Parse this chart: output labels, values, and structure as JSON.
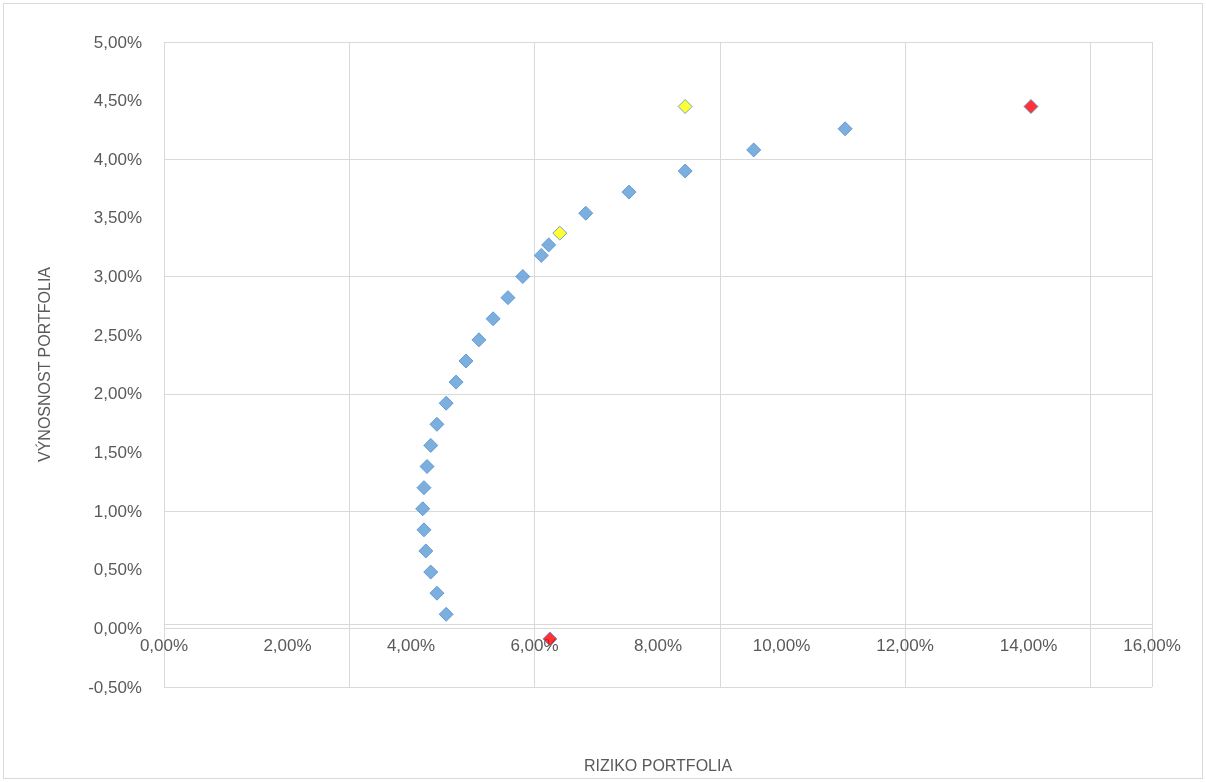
{
  "chart_data": {
    "type": "scatter",
    "xlabel": "RIZIKO PORTFOLIA",
    "ylabel": "VÝNOSNOST PORTFOLIA",
    "marker": "diamond",
    "grid": true,
    "xlim": [
      0,
      16
    ],
    "ylim": [
      -0.5,
      5
    ],
    "xticks": [
      {
        "value": 0,
        "label": "0,00%"
      },
      {
        "value": 2,
        "label": "2,00%"
      },
      {
        "value": 4,
        "label": "4,00%"
      },
      {
        "value": 6,
        "label": "6,00%"
      },
      {
        "value": 8,
        "label": "8,00%"
      },
      {
        "value": 10,
        "label": "10,00%"
      },
      {
        "value": 12,
        "label": "12,00%"
      },
      {
        "value": 14,
        "label": "14,00%"
      },
      {
        "value": 16,
        "label": "16,00%"
      }
    ],
    "yticks": [
      {
        "value": -0.5,
        "label": "-0,50%"
      },
      {
        "value": 0,
        "label": "0,00%"
      },
      {
        "value": 0.5,
        "label": "0,50%"
      },
      {
        "value": 1,
        "label": "1,00%"
      },
      {
        "value": 1.5,
        "label": "1,50%"
      },
      {
        "value": 2,
        "label": "2,00%"
      },
      {
        "value": 2.5,
        "label": "2,50%"
      },
      {
        "value": 3,
        "label": "3,00%"
      },
      {
        "value": 3.5,
        "label": "3,50%"
      },
      {
        "value": 4,
        "label": "4,00%"
      },
      {
        "value": 4.5,
        "label": "4,50%"
      },
      {
        "value": 5,
        "label": "5,00%"
      }
    ],
    "series": [
      {
        "color": "#5b9bd5",
        "x": [
          4.57,
          4.42,
          4.32,
          4.24,
          4.21,
          4.19,
          4.21,
          4.26,
          4.32,
          4.42,
          4.57,
          4.73,
          4.89,
          5.1,
          5.33,
          5.57,
          5.81,
          6.11,
          6.23,
          6.83,
          7.53,
          8.44,
          9.55,
          11.03
        ],
        "values": [
          0.12,
          0.3,
          0.48,
          0.66,
          0.84,
          1.02,
          1.2,
          1.38,
          1.56,
          1.74,
          1.92,
          2.1,
          2.28,
          2.46,
          2.64,
          2.82,
          3.0,
          3.18,
          3.27,
          3.54,
          3.72,
          3.9,
          4.08,
          4.26
        ]
      },
      {
        "color": "#ffff00",
        "x": [
          6.41,
          8.44
        ],
        "values": [
          3.37,
          4.45
        ]
      },
      {
        "color": "#ff0000",
        "x": [
          6.25,
          14.04
        ],
        "values": [
          -0.09,
          4.45
        ]
      }
    ]
  }
}
